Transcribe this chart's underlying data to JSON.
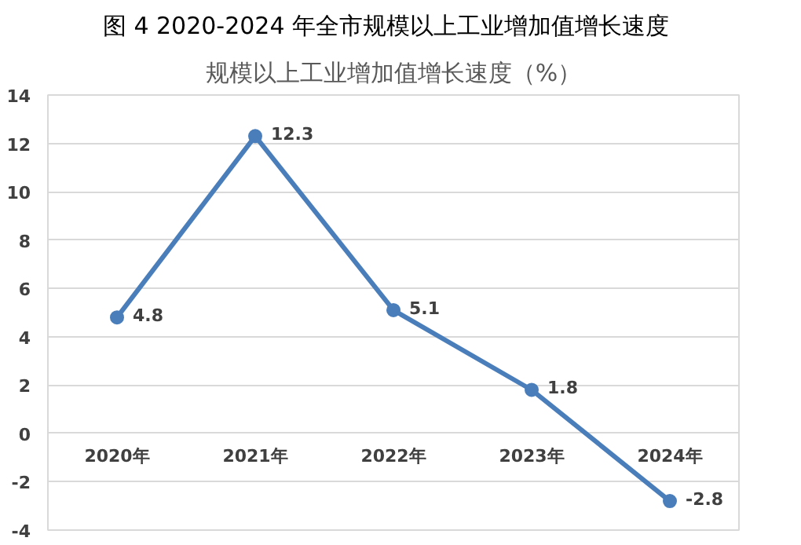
{
  "chart_data": {
    "type": "line",
    "title": "图 4   2020-2024 年全市规模以上工业增加值增长速度",
    "subtitle": "规模以上工业增加值增长速度（%）",
    "categories": [
      "2020年",
      "2021年",
      "2022年",
      "2023年",
      "2024年"
    ],
    "series": [
      {
        "color": "#4a7ebb",
        "values": [
          4.8,
          12.3,
          5.1,
          1.8,
          -2.8
        ]
      }
    ],
    "ylim": [
      -4,
      14
    ],
    "yticks": [
      -4,
      -2,
      0,
      2,
      4,
      6,
      8,
      10,
      12,
      14
    ],
    "grid": "y",
    "marker": "circle",
    "line_style": "solid",
    "data_labels": true
  }
}
